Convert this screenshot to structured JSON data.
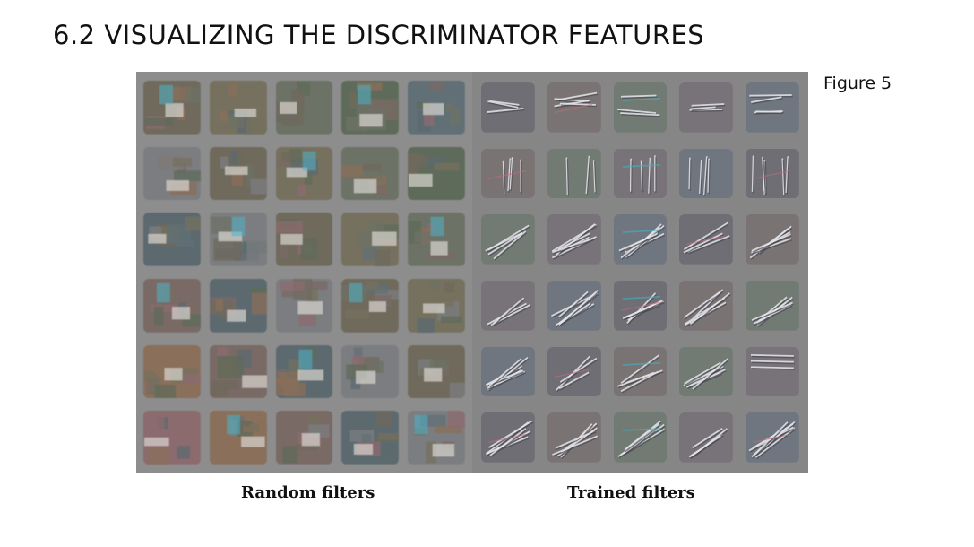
{
  "slide": {
    "title": "6.2 VISUALIZING THE DISCRIMINATOR FEATURES",
    "figure_ref": "Figure 5"
  },
  "figure": {
    "left_label": "Random filters",
    "right_label": "Trained filters",
    "rows": 6,
    "cols": 5,
    "random_palette": [
      "#6f6a5c",
      "#5f6b5a",
      "#8a6f5a",
      "#7b7d80",
      "#6d7266",
      "#8c6b6f",
      "#5c6a70",
      "#76705e",
      "#607076",
      "#7a6a66"
    ],
    "trained_palette": [
      "#6e6e74",
      "#7a7373",
      "#727a74",
      "#787378",
      "#6f7680"
    ]
  }
}
